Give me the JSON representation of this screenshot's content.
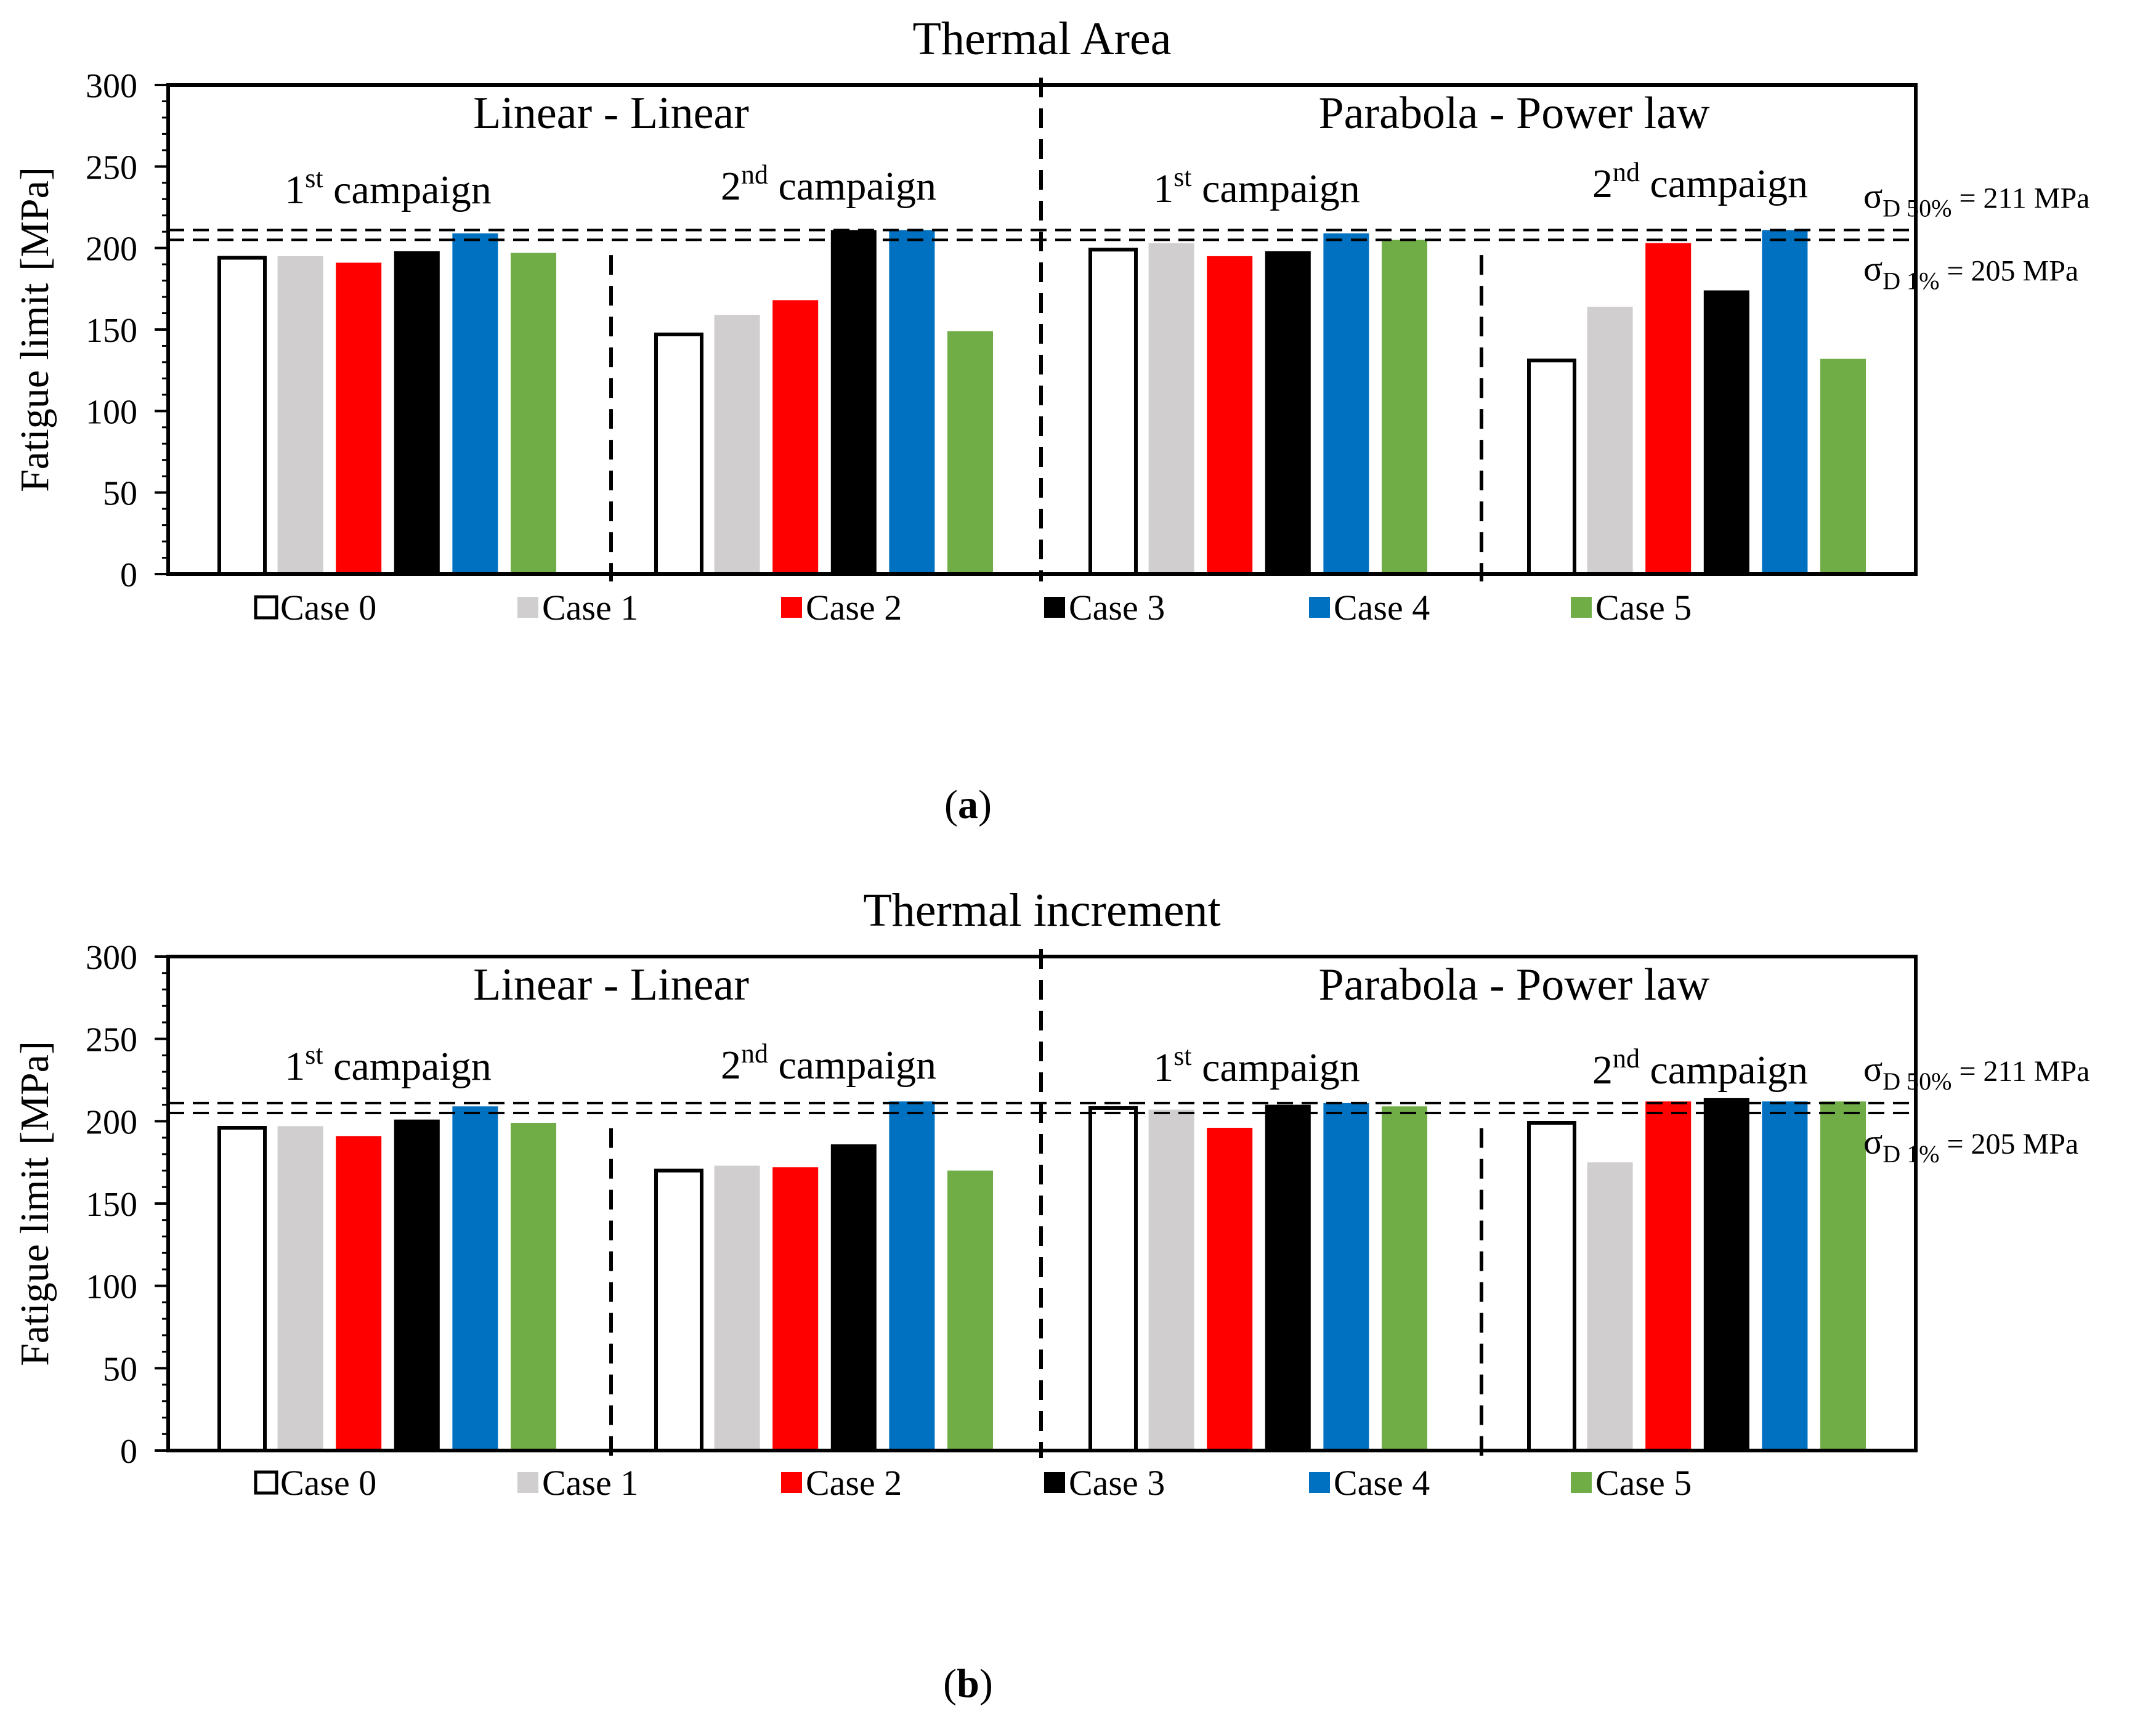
{
  "styles": {
    "case_colors": [
      "#ffffff",
      "#d0cece",
      "#ff0000",
      "#000000",
      "#0070c0",
      "#70ad47"
    ],
    "case_outlines": [
      "#000000",
      "none",
      "none",
      "none",
      "none",
      "none"
    ]
  },
  "chart_data": [
    {
      "type": "bar",
      "title": "Thermal Area",
      "ylabel": "Fatigue limit",
      "ylabel_unit": "[MPa]",
      "ylim": [
        0,
        300
      ],
      "yticks": [
        0,
        50,
        100,
        150,
        200,
        250,
        300
      ],
      "caption_open": "(",
      "caption_letter": "a",
      "caption_close": ")",
      "method_labels": [
        "Linear - Linear",
        "Parabola - Power law"
      ],
      "campaign_labels": [
        {
          "num": "1",
          "sup": "st",
          "text": " campaign"
        },
        {
          "num": "2",
          "sup": "nd",
          "text": " campaign"
        },
        {
          "num": "1",
          "sup": "st",
          "text": " campaign"
        },
        {
          "num": "2",
          "sup": "nd",
          "text": " campaign"
        }
      ],
      "reference_lines": [
        {
          "value": 211,
          "sigma": "σ",
          "sub": "D 50%",
          "text": " = 211 MPa"
        },
        {
          "value": 205,
          "sigma": "σ",
          "sub": "D 1%",
          "text": " = 205 MPa"
        }
      ],
      "legend": [
        "Case 0",
        "Case 1",
        "Case 2",
        "Case 3",
        "Case 4",
        "Case 5"
      ],
      "groups": [
        {
          "method": "Linear - Linear",
          "campaign": "1st campaign",
          "values": [
            194,
            195,
            191,
            198,
            209,
            197
          ]
        },
        {
          "method": "Linear - Linear",
          "campaign": "2nd campaign",
          "values": [
            147,
            159,
            168,
            211,
            211,
            149
          ]
        },
        {
          "method": "Parabola - Power law",
          "campaign": "1st campaign",
          "values": [
            199,
            203,
            195,
            198,
            209,
            205
          ]
        },
        {
          "method": "Parabola - Power law",
          "campaign": "2nd campaign",
          "values": [
            131,
            164,
            203,
            174,
            211,
            132
          ]
        }
      ]
    },
    {
      "type": "bar",
      "title": "Thermal increment",
      "ylabel": "Fatigue limit",
      "ylabel_unit": "[MPa]",
      "ylim": [
        0,
        300
      ],
      "yticks": [
        0,
        50,
        100,
        150,
        200,
        250,
        300
      ],
      "caption_open": "(",
      "caption_letter": "b",
      "caption_close": ")",
      "method_labels": [
        "Linear - Linear",
        "Parabola - Power law"
      ],
      "campaign_labels": [
        {
          "num": "1",
          "sup": "st",
          "text": " campaign"
        },
        {
          "num": "2",
          "sup": "nd",
          "text": " campaign"
        },
        {
          "num": "1",
          "sup": "st",
          "text": " campaign"
        },
        {
          "num": "2",
          "sup": "nd",
          "text": " campaign"
        }
      ],
      "reference_lines": [
        {
          "value": 211,
          "sigma": "σ",
          "sub": "D 50%",
          "text": " = 211 MPa"
        },
        {
          "value": 205,
          "sigma": "σ",
          "sub": "D 1%",
          "text": " = 205 MPa"
        }
      ],
      "legend": [
        "Case 0",
        "Case 1",
        "Case 2",
        "Case 3",
        "Case 4",
        "Case 5"
      ],
      "groups": [
        {
          "method": "Linear - Linear",
          "campaign": "1st campaign",
          "values": [
            196,
            197,
            191,
            201,
            209,
            199
          ]
        },
        {
          "method": "Linear - Linear",
          "campaign": "2nd campaign",
          "values": [
            170,
            173,
            172,
            186,
            212,
            170
          ]
        },
        {
          "method": "Parabola - Power law",
          "campaign": "1st campaign",
          "values": [
            208,
            207,
            196,
            210,
            211,
            209
          ]
        },
        {
          "method": "Parabola - Power law",
          "campaign": "2nd campaign",
          "values": [
            199,
            175,
            212,
            214,
            212,
            212
          ]
        }
      ]
    }
  ]
}
